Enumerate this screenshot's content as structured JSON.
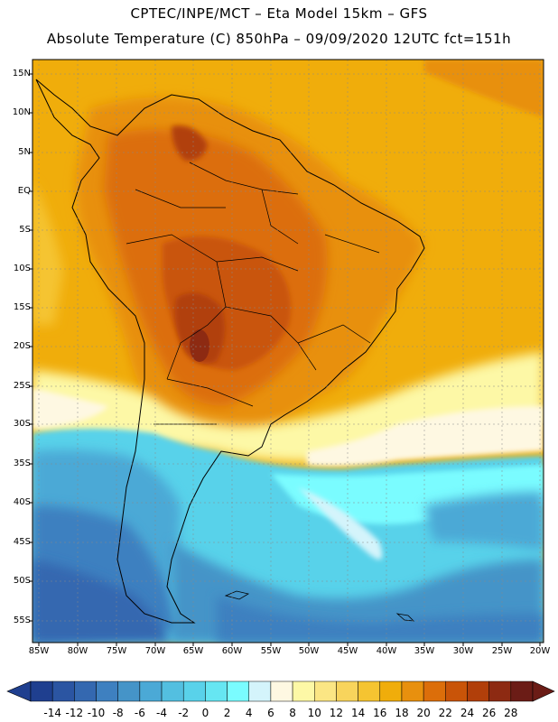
{
  "title": {
    "line1": "CPTEC/INPE/MCT –   Eta Model 15km – GFS",
    "line2": "Absolute Temperature (C) 850hPa – 09/09/2020 12UTC fct=151h"
  },
  "latitude_labels": [
    "15N",
    "10N",
    "5N",
    "EQ",
    "5S",
    "10S",
    "15S",
    "20S",
    "25S",
    "30S",
    "35S",
    "40S",
    "45S",
    "50S",
    "55S"
  ],
  "longitude_labels": [
    "85W",
    "80W",
    "75W",
    "70W",
    "65W",
    "60W",
    "55W",
    "50W",
    "45W",
    "40W",
    "35W",
    "30W",
    "25W",
    "20W"
  ],
  "colorbar": {
    "labels": [
      "-14",
      "-12",
      "-10",
      "-8",
      "-6",
      "-4",
      "-2",
      "0",
      "2",
      "4",
      "6",
      "8",
      "10",
      "12",
      "14",
      "16",
      "18",
      "20",
      "22",
      "24",
      "26",
      "28"
    ],
    "colors": [
      "#1f3f8f",
      "#2b55a2",
      "#3468b0",
      "#3e80c0",
      "#4594c8",
      "#4ba9d6",
      "#53bfe0",
      "#59d2ea",
      "#66e6f2",
      "#7afcff",
      "#d4f4fb",
      "#fef8e2",
      "#fdf8a6",
      "#fbe684",
      "#f8d45c",
      "#f5c431",
      "#f0ad0b",
      "#e8900e",
      "#dc6e0a",
      "#c95408",
      "#b13f0a",
      "#8d2a12",
      "#6b1c16"
    ]
  }
}
